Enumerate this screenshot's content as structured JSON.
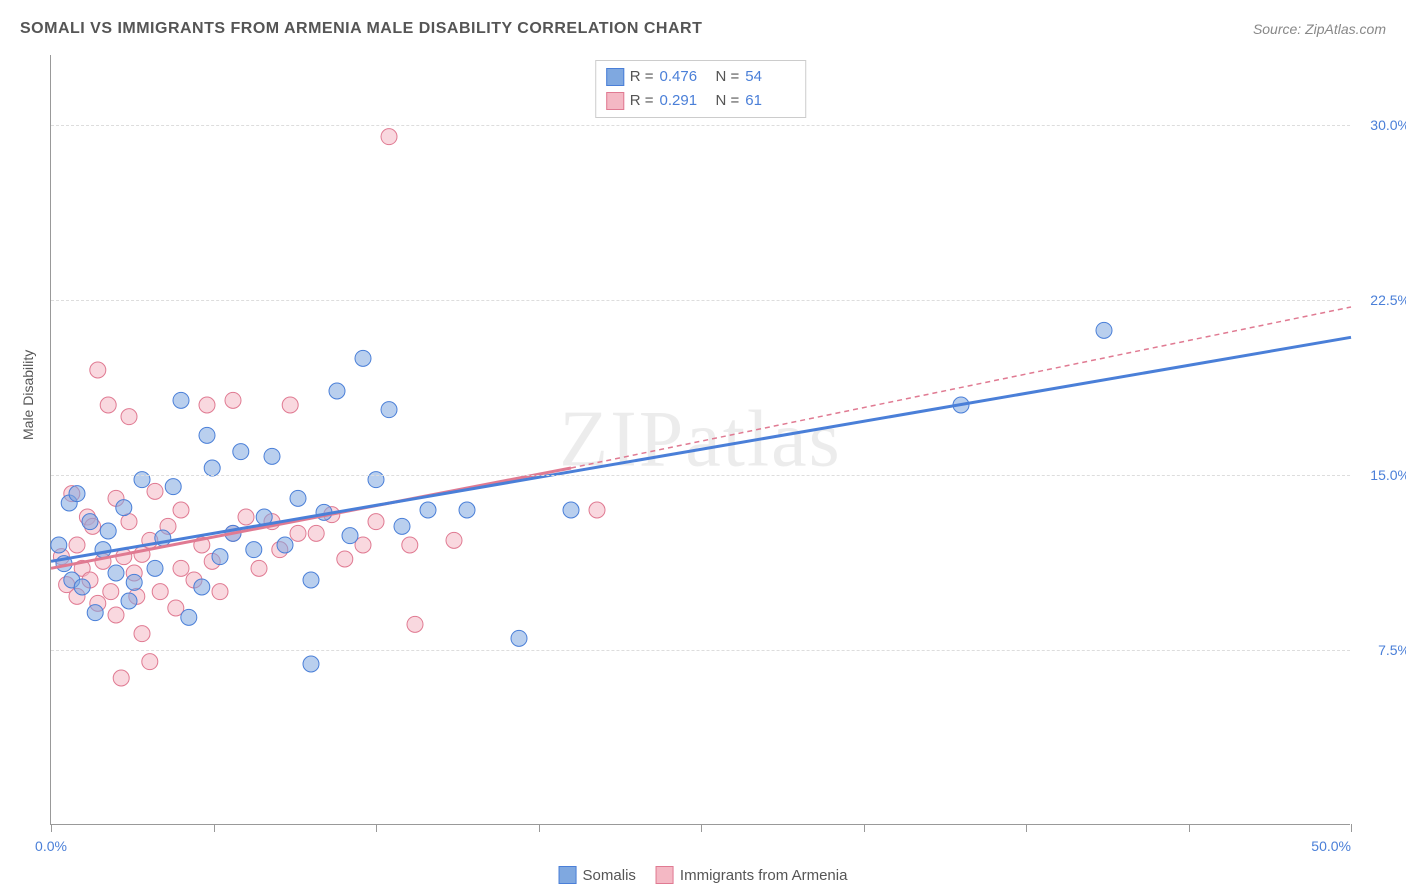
{
  "title": "SOMALI VS IMMIGRANTS FROM ARMENIA MALE DISABILITY CORRELATION CHART",
  "source_label": "Source: ZipAtlas.com",
  "watermark": "ZIPatlas",
  "y_axis_label": "Male Disability",
  "chart": {
    "type": "scatter",
    "xlim": [
      0,
      50
    ],
    "ylim": [
      0,
      33
    ],
    "x_ticks": [
      0,
      6.25,
      12.5,
      18.75,
      25,
      31.25,
      37.5,
      43.75,
      50
    ],
    "x_tick_labels": {
      "0": "0.0%",
      "50": "50.0%"
    },
    "y_ticks": [
      7.5,
      15.0,
      22.5,
      30.0
    ],
    "y_tick_labels": [
      "7.5%",
      "15.0%",
      "22.5%",
      "30.0%"
    ],
    "grid_color": "#dddddd",
    "background_color": "#ffffff",
    "axis_color": "#999999",
    "tick_label_color": "#4a7fd8",
    "marker_radius": 8,
    "marker_opacity": 0.55
  },
  "series": [
    {
      "key": "s1",
      "name": "Somalis",
      "color": "#7fa8e0",
      "border": "#4a7fd8",
      "R": "0.476",
      "N": "54",
      "trend": {
        "x1": 0,
        "y1": 11.3,
        "x2": 50,
        "y2": 20.9,
        "width": 3,
        "dash": "none"
      },
      "points": [
        [
          0.3,
          12.0
        ],
        [
          0.5,
          11.2
        ],
        [
          0.7,
          13.8
        ],
        [
          0.8,
          10.5
        ],
        [
          1.0,
          14.2
        ],
        [
          1.2,
          10.2
        ],
        [
          1.5,
          13.0
        ],
        [
          1.7,
          9.1
        ],
        [
          2.0,
          11.8
        ],
        [
          2.2,
          12.6
        ],
        [
          2.5,
          10.8
        ],
        [
          2.8,
          13.6
        ],
        [
          3.0,
          9.6
        ],
        [
          3.2,
          10.4
        ],
        [
          3.5,
          14.8
        ],
        [
          4.0,
          11.0
        ],
        [
          4.3,
          12.3
        ],
        [
          4.7,
          14.5
        ],
        [
          5.0,
          18.2
        ],
        [
          5.3,
          8.9
        ],
        [
          5.8,
          10.2
        ],
        [
          6.0,
          16.7
        ],
        [
          6.2,
          15.3
        ],
        [
          6.5,
          11.5
        ],
        [
          7.0,
          12.5
        ],
        [
          7.3,
          16.0
        ],
        [
          7.8,
          11.8
        ],
        [
          8.2,
          13.2
        ],
        [
          8.5,
          15.8
        ],
        [
          9.0,
          12.0
        ],
        [
          9.5,
          14.0
        ],
        [
          10.0,
          6.9
        ],
        [
          10.0,
          10.5
        ],
        [
          10.5,
          13.4
        ],
        [
          11.0,
          18.6
        ],
        [
          11.5,
          12.4
        ],
        [
          12.0,
          20.0
        ],
        [
          12.5,
          14.8
        ],
        [
          13.0,
          17.8
        ],
        [
          13.5,
          12.8
        ],
        [
          14.5,
          13.5
        ],
        [
          16.0,
          13.5
        ],
        [
          18.0,
          8.0
        ],
        [
          20.0,
          13.5
        ],
        [
          35.0,
          18.0
        ],
        [
          40.5,
          21.2
        ]
      ]
    },
    {
      "key": "s2",
      "name": "Immigrants from Armenia",
      "color": "#f4b8c4",
      "border": "#e07a92",
      "R": "0.291",
      "N": "61",
      "trend": {
        "x1": 0,
        "y1": 11.0,
        "x2": 20,
        "y2": 15.3,
        "width": 3,
        "dash": "none"
      },
      "trend_dashed": {
        "x1": 20,
        "y1": 15.3,
        "x2": 50,
        "y2": 22.2,
        "width": 1.5,
        "dash": "5,4"
      },
      "points": [
        [
          0.4,
          11.5
        ],
        [
          0.6,
          10.3
        ],
        [
          0.8,
          14.2
        ],
        [
          1.0,
          9.8
        ],
        [
          1.0,
          12.0
        ],
        [
          1.2,
          11.0
        ],
        [
          1.4,
          13.2
        ],
        [
          1.5,
          10.5
        ],
        [
          1.6,
          12.8
        ],
        [
          1.8,
          9.5
        ],
        [
          1.8,
          19.5
        ],
        [
          2.0,
          11.3
        ],
        [
          2.2,
          18.0
        ],
        [
          2.3,
          10.0
        ],
        [
          2.5,
          9.0
        ],
        [
          2.5,
          14.0
        ],
        [
          2.7,
          6.3
        ],
        [
          2.8,
          11.5
        ],
        [
          3.0,
          17.5
        ],
        [
          3.0,
          13.0
        ],
        [
          3.2,
          10.8
        ],
        [
          3.3,
          9.8
        ],
        [
          3.5,
          8.2
        ],
        [
          3.5,
          11.6
        ],
        [
          3.8,
          12.2
        ],
        [
          3.8,
          7.0
        ],
        [
          4.0,
          14.3
        ],
        [
          4.2,
          10.0
        ],
        [
          4.5,
          12.8
        ],
        [
          4.8,
          9.3
        ],
        [
          5.0,
          11.0
        ],
        [
          5.0,
          13.5
        ],
        [
          5.5,
          10.5
        ],
        [
          5.8,
          12.0
        ],
        [
          6.0,
          18.0
        ],
        [
          6.2,
          11.3
        ],
        [
          6.5,
          10.0
        ],
        [
          7.0,
          18.2
        ],
        [
          7.0,
          12.5
        ],
        [
          7.5,
          13.2
        ],
        [
          8.0,
          11.0
        ],
        [
          8.5,
          13.0
        ],
        [
          8.8,
          11.8
        ],
        [
          9.2,
          18.0
        ],
        [
          9.5,
          12.5
        ],
        [
          10.2,
          12.5
        ],
        [
          10.8,
          13.3
        ],
        [
          11.3,
          11.4
        ],
        [
          12.0,
          12.0
        ],
        [
          12.5,
          13.0
        ],
        [
          13.0,
          29.5
        ],
        [
          13.8,
          12.0
        ],
        [
          14.0,
          8.6
        ],
        [
          15.5,
          12.2
        ],
        [
          21.0,
          13.5
        ]
      ]
    }
  ],
  "stats_legend": {
    "R_label": "R =",
    "N_label": "N ="
  },
  "bottom_legend": {
    "items": [
      "Somalis",
      "Immigrants from Armenia"
    ]
  }
}
